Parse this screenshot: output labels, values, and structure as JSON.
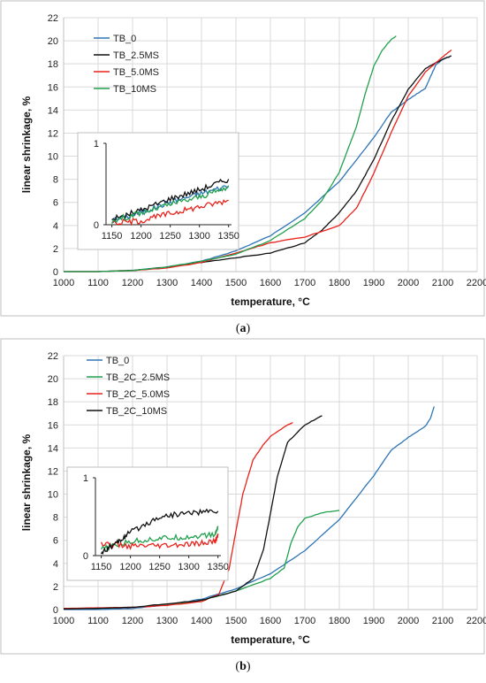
{
  "captions": [
    "(a)",
    "(b)"
  ],
  "captions_parts": [
    {
      "open": "(",
      "letter": "a",
      "close": ")"
    },
    {
      "open": "(",
      "letter": "b",
      "close": ")"
    }
  ],
  "chart_data": [
    {
      "type": "line",
      "title": "",
      "xlabel": "temperature, °C",
      "ylabel": "linear shrinkage, %",
      "xlim": [
        1000,
        2200
      ],
      "ylim": [
        0,
        22
      ],
      "xticks": [
        1000,
        1100,
        1200,
        1300,
        1400,
        1500,
        1600,
        1700,
        1800,
        1900,
        2000,
        2100,
        2200
      ],
      "yticks": [
        0,
        2,
        4,
        6,
        8,
        10,
        12,
        14,
        16,
        18,
        20,
        22
      ],
      "grid": true,
      "legend": "top-left",
      "series": [
        {
          "name": "TB_0",
          "color": "#2e75b6",
          "x": [
            1000,
            1100,
            1200,
            1300,
            1400,
            1500,
            1600,
            1700,
            1800,
            1900,
            1950,
            2000,
            2050,
            2065,
            2080,
            2100,
            2120
          ],
          "y": [
            0,
            0,
            0.1,
            0.4,
            0.9,
            1.8,
            3.1,
            5.1,
            7.8,
            11.6,
            13.8,
            14.9,
            15.9,
            16.9,
            17.9,
            18.4,
            18.6
          ]
        },
        {
          "name": "TB_2.5MS",
          "color": "#111111",
          "x": [
            1000,
            1100,
            1200,
            1300,
            1400,
            1500,
            1600,
            1700,
            1750,
            1800,
            1850,
            1900,
            1950,
            2000,
            2050,
            2100,
            2125
          ],
          "y": [
            0,
            0,
            0.1,
            0.4,
            0.8,
            1.2,
            1.6,
            2.5,
            3.6,
            5.1,
            7.0,
            9.7,
            13.0,
            15.8,
            17.6,
            18.4,
            18.7
          ]
        },
        {
          "name": "TB_5.0MS",
          "color": "#e8221b",
          "x": [
            1000,
            1100,
            1200,
            1300,
            1400,
            1500,
            1600,
            1700,
            1800,
            1850,
            1900,
            1950,
            2000,
            2050,
            2100,
            2125
          ],
          "y": [
            0,
            0,
            0.1,
            0.3,
            0.8,
            1.6,
            2.5,
            3.0,
            4.0,
            5.5,
            8.5,
            12.0,
            15.2,
            17.3,
            18.6,
            19.2
          ]
        },
        {
          "name": "TB_10MS",
          "color": "#21a04d",
          "x": [
            1000,
            1100,
            1200,
            1300,
            1400,
            1500,
            1600,
            1700,
            1750,
            1800,
            1850,
            1875,
            1900,
            1925,
            1950,
            1965
          ],
          "y": [
            0,
            0,
            0.1,
            0.4,
            0.9,
            1.5,
            2.7,
            4.6,
            6.2,
            8.6,
            12.6,
            15.4,
            17.8,
            19.2,
            20.1,
            20.4
          ]
        }
      ],
      "inset": {
        "xlim": [
          1140,
          1355
        ],
        "ylim": [
          0,
          1
        ],
        "xticks": [
          1150,
          1200,
          1250,
          1300,
          1350
        ],
        "yticks": [
          0,
          1
        ],
        "series": [
          {
            "name": "TB_0",
            "color": "#2e75b6",
            "x": [
              1150,
              1200,
              1250,
              1300,
              1350
            ],
            "y": [
              0.05,
              0.15,
              0.28,
              0.38,
              0.48
            ]
          },
          {
            "name": "TB_2.5MS",
            "color": "#111111",
            "x": [
              1150,
              1200,
              1250,
              1300,
              1350
            ],
            "y": [
              0.06,
              0.18,
              0.32,
              0.43,
              0.56
            ]
          },
          {
            "name": "TB_5.0MS",
            "color": "#e8221b",
            "x": [
              1150,
              1200,
              1250,
              1300,
              1350
            ],
            "y": [
              0.02,
              0.05,
              0.14,
              0.22,
              0.3
            ]
          },
          {
            "name": "TB_10MS",
            "color": "#21a04d",
            "x": [
              1150,
              1200,
              1250,
              1300,
              1350
            ],
            "y": [
              0.05,
              0.14,
              0.25,
              0.34,
              0.46
            ]
          }
        ]
      }
    },
    {
      "type": "line",
      "title": "",
      "xlabel": "temperature, °C",
      "ylabel": "linear shrinkage, %",
      "xlim": [
        1000,
        2200
      ],
      "ylim": [
        0,
        22
      ],
      "xticks": [
        1000,
        1100,
        1200,
        1300,
        1400,
        1500,
        1600,
        1700,
        1800,
        1900,
        2000,
        2100,
        2200
      ],
      "yticks": [
        0,
        2,
        4,
        6,
        8,
        10,
        12,
        14,
        16,
        18,
        20,
        22
      ],
      "grid": true,
      "legend": "top-left",
      "series": [
        {
          "name": "TB_0",
          "color": "#2e75b6",
          "x": [
            1000,
            1100,
            1200,
            1300,
            1400,
            1500,
            1600,
            1700,
            1800,
            1900,
            1950,
            2000,
            2050,
            2065,
            2075
          ],
          "y": [
            0,
            0,
            0.1,
            0.4,
            0.9,
            1.8,
            3.1,
            5.1,
            7.8,
            11.6,
            13.8,
            14.9,
            15.9,
            16.6,
            17.6
          ]
        },
        {
          "name": "TB_2C_2.5MS",
          "color": "#21a04d",
          "x": [
            1000,
            1100,
            1200,
            1300,
            1400,
            1500,
            1600,
            1640,
            1660,
            1680,
            1700,
            1750,
            1800
          ],
          "y": [
            0.05,
            0.1,
            0.2,
            0.4,
            0.8,
            1.6,
            2.7,
            3.6,
            5.8,
            7.2,
            7.9,
            8.4,
            8.6
          ]
        },
        {
          "name": "TB_2C_5.0MS",
          "color": "#e8221b",
          "x": [
            1000,
            1100,
            1200,
            1300,
            1400,
            1450,
            1480,
            1500,
            1520,
            1550,
            1580,
            1600,
            1650,
            1665
          ],
          "y": [
            0.1,
            0.15,
            0.2,
            0.35,
            0.7,
            1.3,
            3.5,
            6.8,
            10.0,
            13.0,
            14.3,
            15.0,
            16.0,
            16.2
          ]
        },
        {
          "name": "TB_2C_10MS",
          "color": "#111111",
          "x": [
            1000,
            1100,
            1200,
            1300,
            1400,
            1500,
            1550,
            1580,
            1600,
            1620,
            1650,
            1700,
            1750
          ],
          "y": [
            0.05,
            0.1,
            0.2,
            0.5,
            0.8,
            1.6,
            2.7,
            5.2,
            8.3,
            11.5,
            14.5,
            16.0,
            16.8
          ]
        }
      ],
      "inset": {
        "xlim": [
          1140,
          1355
        ],
        "ylim": [
          0,
          1
        ],
        "xticks": [
          1150,
          1200,
          1250,
          1300,
          1350
        ],
        "yticks": [
          0,
          1
        ],
        "series": [
          {
            "name": "TB_2C_2.5MS",
            "color": "#21a04d",
            "x": [
              1150,
              1200,
              1250,
              1300,
              1345,
              1350
            ],
            "y": [
              0.08,
              0.18,
              0.22,
              0.24,
              0.27,
              0.38
            ]
          },
          {
            "name": "TB_2C_5.0MS",
            "color": "#e8221b",
            "x": [
              1150,
              1200,
              1250,
              1300,
              1345,
              1350
            ],
            "y": [
              0.15,
              0.12,
              0.12,
              0.14,
              0.18,
              0.26
            ]
          },
          {
            "name": "TB_2C_10MS",
            "color": "#111111",
            "x": [
              1150,
              1175,
              1200,
              1250,
              1300,
              1350
            ],
            "y": [
              0.05,
              0.15,
              0.3,
              0.5,
              0.55,
              0.57
            ]
          }
        ]
      }
    }
  ]
}
